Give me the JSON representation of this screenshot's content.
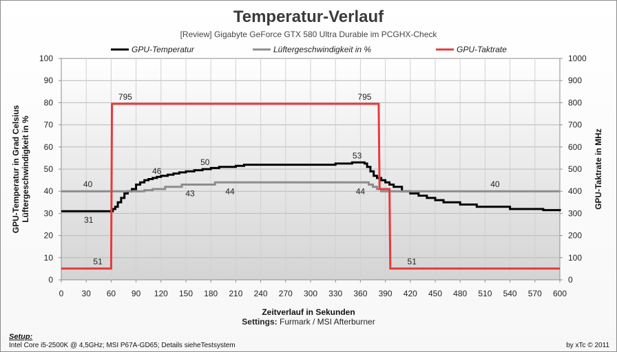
{
  "page": {
    "setup_title": "Setup:",
    "setup_text": "Intel Core i5-2500K @ 4,5GHz; MSI P67A-GD65; Details sieheTestsystem",
    "copyright": "by xTc © 2011",
    "settings_label": "Settings:",
    "settings_value": "Furmark / MSI Afterburner"
  },
  "chart_data": {
    "type": "line",
    "title": "Temperatur-Verlauf",
    "subtitle": "[Review] Gigabyte  GeForce GTX 580 Ultra Durable  im PCGHX-Check",
    "xlabel": "Zeitverlauf in Sekunden",
    "ylabel_left": "GPU-Temperatur  in Grad Celsius\nLüftergeschwindigkeit  in %",
    "ylabel_right": "GPU-Taktrate in MHz",
    "xlim": [
      0,
      600
    ],
    "ylim_left": [
      0,
      100
    ],
    "ylim_right": [
      0,
      1000
    ],
    "x_ticks": [
      0,
      30,
      60,
      90,
      120,
      150,
      180,
      210,
      240,
      270,
      300,
      330,
      360,
      390,
      420,
      450,
      480,
      510,
      540,
      570,
      600
    ],
    "y_ticks_left": [
      0,
      10,
      20,
      30,
      40,
      50,
      60,
      70,
      80,
      90,
      100
    ],
    "y_ticks_right": [
      0,
      100,
      200,
      300,
      400,
      500,
      600,
      700,
      800,
      900,
      1000
    ],
    "grid": true,
    "legend_position": "top",
    "series": [
      {
        "name": "GPU-Temperatur",
        "color": "#000000",
        "axis": "left",
        "x": [
          0,
          58,
          60,
          62,
          65,
          68,
          72,
          76,
          80,
          85,
          90,
          95,
          100,
          105,
          110,
          115,
          120,
          128,
          135,
          142,
          150,
          160,
          170,
          180,
          190,
          200,
          210,
          220,
          240,
          270,
          300,
          330,
          350,
          360,
          365,
          368,
          372,
          376,
          380,
          385,
          390,
          395,
          400,
          410,
          420,
          430,
          440,
          450,
          460,
          480,
          500,
          520,
          540,
          560,
          580,
          600
        ],
        "y": [
          31,
          31,
          31,
          32,
          33,
          35,
          37,
          39,
          40,
          41,
          43,
          44,
          45,
          45.5,
          46,
          46.5,
          47,
          47.5,
          48,
          48.5,
          49,
          49.5,
          50,
          50.5,
          51,
          51,
          51.5,
          52,
          52,
          52,
          52,
          52.5,
          53,
          53,
          52.5,
          51,
          49,
          47,
          46,
          45,
          44,
          43,
          42,
          40,
          39,
          38,
          37,
          36,
          35,
          34,
          33,
          33,
          32,
          32,
          31.5,
          31
        ]
      },
      {
        "name": "Lüftergeschwindigkeit in %",
        "color": "#8c8c8c",
        "axis": "left",
        "x": [
          0,
          60,
          70,
          80,
          90,
          100,
          110,
          125,
          145,
          170,
          185,
          200,
          300,
          360,
          370,
          375,
          380,
          385,
          600
        ],
        "y": [
          40,
          40,
          40,
          40,
          40,
          40.5,
          41,
          42,
          43,
          43,
          44,
          44,
          44,
          44,
          43,
          42,
          41,
          40,
          40
        ]
      },
      {
        "name": "GPU-Taktrate",
        "color": "#e8393a",
        "axis": "right",
        "x": [
          0,
          60,
          61,
          382,
          383,
          395,
          396,
          600
        ],
        "y": [
          51,
          51,
          795,
          795,
          410,
          410,
          51,
          51
        ]
      }
    ],
    "annotations": [
      {
        "text": "795",
        "x": 77,
        "y": 795,
        "axis": "right"
      },
      {
        "text": "795",
        "x": 365,
        "y": 795,
        "axis": "right"
      },
      {
        "text": "51",
        "x": 44,
        "y": 51,
        "axis": "right",
        "below": false
      },
      {
        "text": "51",
        "x": 422,
        "y": 51,
        "axis": "right",
        "below": false
      },
      {
        "text": "31",
        "x": 33,
        "y": 31,
        "axis": "left",
        "below": true
      },
      {
        "text": "46",
        "x": 115,
        "y": 46,
        "axis": "left",
        "below": false
      },
      {
        "text": "50",
        "x": 173,
        "y": 50,
        "axis": "left",
        "below": false
      },
      {
        "text": "53",
        "x": 356,
        "y": 53,
        "axis": "left",
        "below": false
      },
      {
        "text": "40",
        "x": 32,
        "y": 40,
        "axis": "left",
        "below": false
      },
      {
        "text": "40",
        "x": 522,
        "y": 40,
        "axis": "left",
        "below": false
      },
      {
        "text": "43",
        "x": 155,
        "y": 43,
        "axis": "left",
        "below": true
      },
      {
        "text": "44",
        "x": 203,
        "y": 44,
        "axis": "left",
        "below": true
      },
      {
        "text": "44",
        "x": 360,
        "y": 44,
        "axis": "left",
        "below": true
      }
    ]
  }
}
